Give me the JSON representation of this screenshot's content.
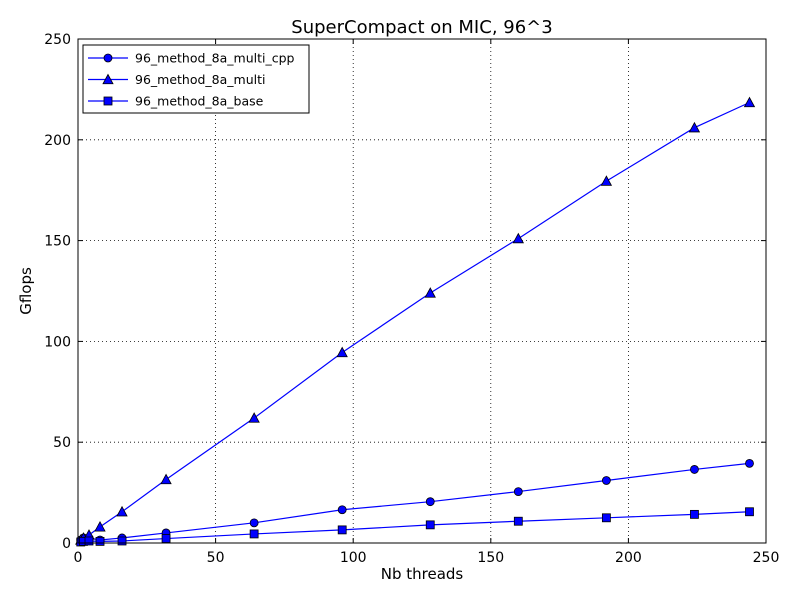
{
  "chart_data": {
    "type": "line",
    "title": "SuperCompact on MIC, 96^3",
    "xlabel": "Nb threads",
    "ylabel": "Gflops",
    "xlim": [
      0,
      250
    ],
    "ylim": [
      0,
      250
    ],
    "xticks": [
      "0",
      "50",
      "100",
      "150",
      "200",
      "250"
    ],
    "yticks": [
      "0",
      "50",
      "100",
      "150",
      "200",
      "250"
    ],
    "grid": true,
    "legend_position": "top-left",
    "color": "#0000ff",
    "series": [
      {
        "name": "96_method_8a_multi_cpp",
        "marker": "circle",
        "points": [
          [
            1,
            1.5
          ],
          [
            2,
            2.5
          ],
          [
            4,
            2.5
          ],
          [
            8,
            1.5
          ],
          [
            16,
            2.5
          ],
          [
            32,
            5
          ],
          [
            64,
            10
          ],
          [
            96,
            16.5
          ],
          [
            128,
            20.5
          ],
          [
            160,
            25.5
          ],
          [
            192,
            31
          ],
          [
            224,
            36.5
          ],
          [
            244,
            39.5
          ]
        ]
      },
      {
        "name": "96_method_8a_multi",
        "marker": "triangle",
        "points": [
          [
            1,
            1.5
          ],
          [
            2,
            2.5
          ],
          [
            4,
            4
          ],
          [
            8,
            8
          ],
          [
            16,
            15.5
          ],
          [
            32,
            31.5
          ],
          [
            64,
            62
          ],
          [
            96,
            94.5
          ],
          [
            128,
            124
          ],
          [
            160,
            151
          ],
          [
            192,
            179.5
          ],
          [
            224,
            206
          ],
          [
            244,
            218.5
          ]
        ]
      },
      {
        "name": "96_method_8a_base",
        "marker": "square",
        "points": [
          [
            1,
            0.5
          ],
          [
            2,
            0.8
          ],
          [
            4,
            1
          ],
          [
            8,
            0.8
          ],
          [
            16,
            1
          ],
          [
            32,
            2.2
          ],
          [
            64,
            4.5
          ],
          [
            96,
            6.5
          ],
          [
            128,
            9
          ],
          [
            160,
            10.8
          ],
          [
            192,
            12.5
          ],
          [
            224,
            14.2
          ],
          [
            244,
            15.5
          ]
        ]
      }
    ]
  }
}
